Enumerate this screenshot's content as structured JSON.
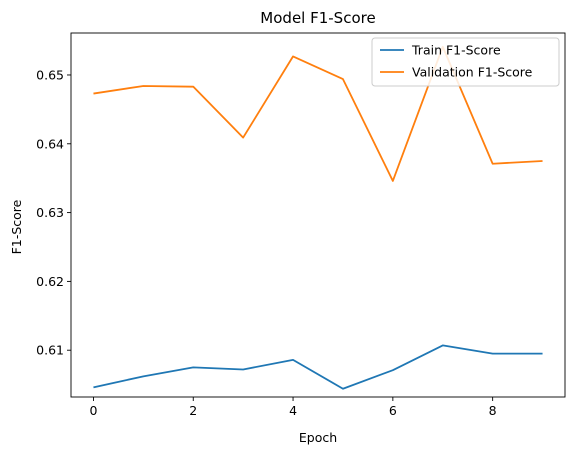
{
  "chart_data": {
    "type": "line",
    "title": "Model F1-Score",
    "xlabel": "Epoch",
    "ylabel": "F1-Score",
    "x": [
      0,
      1,
      2,
      3,
      4,
      5,
      6,
      7,
      8,
      9
    ],
    "xlim": [
      -0.45,
      9.45
    ],
    "ylim": [
      0.6032,
      0.6561
    ],
    "xticks": [
      0,
      2,
      4,
      6,
      8
    ],
    "yticks": [
      0.61,
      0.62,
      0.63,
      0.64,
      0.65
    ],
    "legend_position": "top-right",
    "grid": false,
    "series": [
      {
        "name": "Train F1-Score",
        "color": "#1f77b4",
        "values": [
          0.6046,
          0.6062,
          0.6075,
          0.6072,
          0.6086,
          0.6044,
          0.6071,
          0.6107,
          0.6095,
          0.6095
        ]
      },
      {
        "name": "Validation F1-Score",
        "color": "#ff7f0e",
        "values": [
          0.6473,
          0.6484,
          0.6483,
          0.6409,
          0.6527,
          0.6494,
          0.6346,
          0.6541,
          0.6371,
          0.6375
        ]
      }
    ]
  }
}
